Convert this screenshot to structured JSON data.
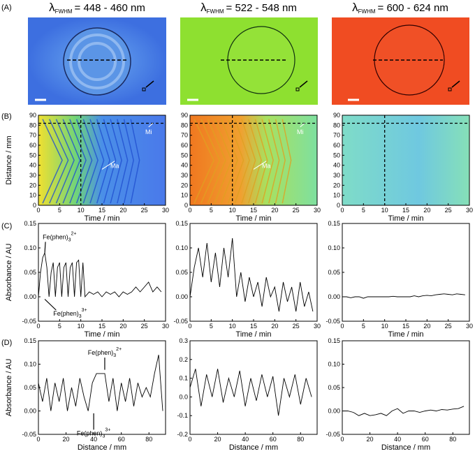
{
  "panel_labels": [
    "(A)",
    "(B)",
    "(C)",
    "(D)"
  ],
  "wavelength_titles": [
    {
      "symbol": "λ",
      "subscript": "FWHM",
      "range": "= 448 - 460 nm"
    },
    {
      "symbol": "λ",
      "subscript": "FWHM",
      "range": "= 522 - 548 nm"
    },
    {
      "symbol": "λ",
      "subscript": "FWHM",
      "range": "= 600 - 624 nm"
    }
  ],
  "chart_data": [
    {
      "type": "heatmap",
      "xlabel": "Time / min",
      "ylabel": "Distance / mm",
      "xlim": [
        0,
        30
      ],
      "xticks": [
        0,
        5,
        10,
        15,
        20,
        25,
        30
      ],
      "ylim": [
        0,
        90
      ],
      "yticks": [
        0,
        10,
        20,
        30,
        40,
        50,
        60,
        70,
        80,
        90
      ],
      "guides": {
        "x": 10,
        "y": 82
      },
      "annotations": [
        {
          "text": "Mi"
        },
        {
          "text": "Ma"
        }
      ]
    },
    {
      "type": "heatmap",
      "xlabel": "Time / min",
      "xlim": [
        0,
        30
      ],
      "xticks": [
        0,
        5,
        10,
        15,
        20,
        25,
        30
      ],
      "ylim": [
        0,
        90
      ],
      "yticks": [
        0,
        10,
        20,
        30,
        40,
        50,
        60,
        70,
        80,
        90
      ],
      "guides": {
        "x": 10,
        "y": 82
      },
      "annotations": [
        {
          "text": "Mi"
        },
        {
          "text": "Ma"
        }
      ]
    },
    {
      "type": "heatmap",
      "xlabel": "Time / min",
      "xlim": [
        0,
        30
      ],
      "xticks": [
        0,
        5,
        10,
        15,
        20,
        25,
        30
      ],
      "ylim": [
        0,
        90
      ],
      "yticks": [
        0,
        10,
        20,
        30,
        40,
        50,
        60,
        70,
        80,
        90
      ],
      "guides": {
        "x": 10,
        "y": 82
      },
      "annotations": []
    },
    {
      "type": "line",
      "xlabel": "Time / min",
      "ylabel": "Absorbance / AU",
      "color": "#000000",
      "xlim": [
        0,
        30
      ],
      "xticks": [
        0,
        5,
        10,
        15,
        20,
        25,
        30
      ],
      "ylim": [
        -0.05,
        0.15
      ],
      "yticks": [
        {
          "value": -0.05,
          "label": "-0.05"
        },
        {
          "value": 0,
          "label": "0.00"
        },
        {
          "value": 0.05,
          "label": "0.05"
        },
        {
          "value": 0.1,
          "label": "0.10"
        },
        {
          "value": 0.15,
          "label": "0.15"
        }
      ],
      "x": [
        0,
        0.5,
        1,
        1.5,
        2,
        2.5,
        3,
        3.5,
        4,
        4.5,
        5,
        5.5,
        6,
        6.5,
        7,
        7.5,
        8,
        8.5,
        9,
        9.5,
        10,
        10.5,
        11,
        12,
        13,
        14,
        15,
        16,
        17,
        18,
        19,
        20,
        21,
        22,
        23,
        24,
        25,
        26,
        27,
        28,
        29
      ],
      "values": [
        0.0,
        0.05,
        0.08,
        0.09,
        0.06,
        0.0,
        0.05,
        0.07,
        0.0,
        0.06,
        0.07,
        0.0,
        0.06,
        0.07,
        0.0,
        0.06,
        0.07,
        0.0,
        0.07,
        0.075,
        0.0,
        0.07,
        0.0,
        0.01,
        0.005,
        0.01,
        0.0,
        0.01,
        0.005,
        0.01,
        0.0,
        0.01,
        0.005,
        0.01,
        0.02,
        0.01,
        0.02,
        0.03,
        0.01,
        0.02,
        0.01
      ],
      "annotations": [
        {
          "text": "Fe(phen)",
          "sub": "3",
          "sup": "2+"
        },
        {
          "text": "Fe(phen)",
          "sub": "3",
          "sup": "3+"
        }
      ]
    },
    {
      "type": "line",
      "xlabel": "Time / min",
      "color": "#000000",
      "xlim": [
        0,
        30
      ],
      "xticks": [
        0,
        5,
        10,
        15,
        20,
        25,
        30
      ],
      "ylim": [
        -0.05,
        0.15
      ],
      "yticks": [
        {
          "value": -0.05,
          "label": "-0.05"
        },
        {
          "value": 0,
          "label": "0.00"
        },
        {
          "value": 0.05,
          "label": "0.05"
        },
        {
          "value": 0.1,
          "label": "0.10"
        },
        {
          "value": 0.15,
          "label": "0.15"
        }
      ],
      "x": [
        0,
        1,
        2,
        3,
        4,
        5,
        6,
        7,
        8,
        9,
        10,
        11,
        12,
        13,
        14,
        15,
        16,
        17,
        18,
        19,
        20,
        21,
        22,
        23,
        24,
        25,
        26,
        27,
        28,
        29
      ],
      "values": [
        0.0,
        0.06,
        0.1,
        0.04,
        0.11,
        0.03,
        0.09,
        0.02,
        0.1,
        0.04,
        0.12,
        0.0,
        0.05,
        -0.01,
        0.04,
        0.0,
        0.03,
        -0.02,
        0.04,
        0.0,
        0.02,
        -0.03,
        0.03,
        -0.01,
        0.02,
        -0.03,
        0.03,
        -0.02,
        0.01,
        -0.03
      ],
      "annotations": []
    },
    {
      "type": "line",
      "xlabel": "Time / min",
      "color": "#000000",
      "xlim": [
        0,
        30
      ],
      "xticks": [
        0,
        5,
        10,
        15,
        20,
        25,
        30
      ],
      "ylim": [
        -0.05,
        0.15
      ],
      "yticks": [
        {
          "value": -0.05,
          "label": "-0.05"
        },
        {
          "value": 0,
          "label": "0.00"
        },
        {
          "value": 0.05,
          "label": "0.05"
        },
        {
          "value": 0.1,
          "label": "0.10"
        },
        {
          "value": 0.15,
          "label": "0.15"
        }
      ],
      "x": [
        0,
        1,
        2,
        3,
        4,
        5,
        6,
        7,
        8,
        9,
        10,
        11,
        12,
        13,
        14,
        15,
        16,
        17,
        18,
        19,
        20,
        21,
        22,
        23,
        24,
        25,
        26,
        27,
        28,
        29
      ],
      "values": [
        0,
        0,
        -0.002,
        0,
        0,
        -0.003,
        0,
        0,
        0,
        0,
        0,
        0,
        0.001,
        0,
        0,
        0,
        0,
        0.002,
        0,
        0.002,
        0.003,
        0.002,
        0.004,
        0.005,
        0.006,
        0.005,
        0.004,
        0.006,
        0.005,
        0.004
      ],
      "annotations": []
    },
    {
      "type": "line",
      "xlabel": "Distance / mm",
      "ylabel": "Absorbance / AU",
      "color": "#000000",
      "xlim": [
        0,
        92
      ],
      "xticks": [
        0,
        20,
        40,
        60,
        80
      ],
      "ylim": [
        -0.05,
        0.15
      ],
      "yticks": [
        {
          "value": -0.05,
          "label": "-0.05"
        },
        {
          "value": 0,
          "label": "0.00"
        },
        {
          "value": 0.05,
          "label": "0.05"
        },
        {
          "value": 0.1,
          "label": "0.10"
        },
        {
          "value": 0.15,
          "label": "0.15"
        }
      ],
      "x": [
        0,
        3,
        6,
        9,
        12,
        15,
        18,
        21,
        24,
        27,
        30,
        33,
        36,
        39,
        42,
        45,
        48,
        51,
        54,
        57,
        60,
        63,
        66,
        69,
        72,
        75,
        78,
        81,
        84,
        87,
        90
      ],
      "values": [
        0.06,
        0.02,
        0.07,
        0.0,
        0.06,
        0.02,
        0.07,
        0.0,
        0.05,
        0.01,
        0.07,
        0.03,
        0.0,
        0.06,
        0.08,
        0.08,
        0.08,
        0.02,
        0.07,
        0.0,
        0.06,
        0.02,
        0.07,
        0.01,
        0.06,
        0.03,
        0.05,
        0.03,
        0.08,
        0.12,
        0.0
      ],
      "annotations": [
        {
          "text": "Fe(phen)",
          "sub": "3",
          "sup": "2+"
        },
        {
          "text": "Fe(phen)",
          "sub": "3",
          "sup": "3+"
        }
      ]
    },
    {
      "type": "line",
      "xlabel": "Distance / mm",
      "color": "#000000",
      "xlim": [
        0,
        92
      ],
      "xticks": [
        0,
        20,
        40,
        60,
        80
      ],
      "ylim": [
        -0.2,
        0.3
      ],
      "yticks": [
        {
          "value": -0.2,
          "label": "-0.2"
        },
        {
          "value": -0.1,
          "label": "-0.1"
        },
        {
          "value": 0,
          "label": "0.0"
        },
        {
          "value": 0.1,
          "label": "0.1"
        },
        {
          "value": 0.2,
          "label": "0.2"
        },
        {
          "value": 0.3,
          "label": "0.3"
        }
      ],
      "x": [
        0,
        4,
        8,
        12,
        16,
        20,
        24,
        28,
        32,
        36,
        40,
        44,
        48,
        52,
        56,
        60,
        64,
        68,
        72,
        76,
        80,
        84,
        88
      ],
      "values": [
        0.05,
        0.15,
        -0.05,
        0.12,
        0.0,
        0.15,
        -0.03,
        0.1,
        0.0,
        0.14,
        -0.05,
        0.1,
        -0.02,
        0.12,
        0.0,
        0.11,
        -0.1,
        0.1,
        0.0,
        0.12,
        -0.04,
        0.1,
        0.0
      ],
      "annotations": []
    },
    {
      "type": "line",
      "xlabel": "Distance / mm",
      "color": "#000000",
      "xlim": [
        0,
        92
      ],
      "xticks": [
        0,
        20,
        40,
        60,
        80
      ],
      "ylim": [
        -0.05,
        0.15
      ],
      "yticks": [
        {
          "value": -0.05,
          "label": "-0.05"
        },
        {
          "value": 0,
          "label": "0.00"
        },
        {
          "value": 0.05,
          "label": "0.05"
        },
        {
          "value": 0.1,
          "label": "0.10"
        },
        {
          "value": 0.15,
          "label": "0.15"
        }
      ],
      "x": [
        0,
        4,
        8,
        12,
        16,
        20,
        24,
        28,
        32,
        36,
        40,
        44,
        48,
        52,
        56,
        60,
        64,
        68,
        72,
        76,
        80,
        84,
        88
      ],
      "values": [
        0.0,
        0.0,
        -0.003,
        -0.01,
        -0.005,
        -0.01,
        -0.008,
        -0.005,
        -0.01,
        0.0,
        0.005,
        -0.005,
        0.0,
        0.0,
        -0.003,
        0.0,
        0.002,
        0.0,
        0.003,
        0.002,
        0.004,
        0.005,
        0.01
      ],
      "annotations": []
    }
  ]
}
